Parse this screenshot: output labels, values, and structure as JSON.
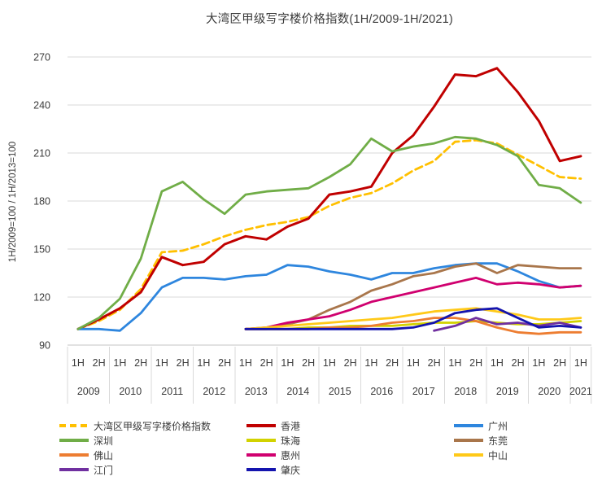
{
  "title": "大湾区甲级写字楼价格指数(1H/2009-1H/2021)",
  "chart_data": {
    "type": "line",
    "title": "大湾区甲级写字楼价格指数(1H/2009-1H/2021)",
    "xlabel": "",
    "ylabel": "1H/2009=100 / 1H/2013=100",
    "ylim": [
      90,
      270
    ],
    "y_ticks": [
      90,
      120,
      150,
      180,
      210,
      240,
      270
    ],
    "grid": true,
    "legend_position": "bottom",
    "x_half_labels": [
      "1H",
      "2H",
      "1H",
      "2H",
      "1H",
      "2H",
      "1H",
      "2H",
      "1H",
      "2H",
      "1H",
      "2H",
      "1H",
      "2H",
      "1H",
      "2H",
      "1H",
      "2H",
      "1H",
      "2H",
      "1H",
      "2H",
      "1H",
      "2H",
      "1H"
    ],
    "x_years": [
      "2009",
      "2010",
      "2011",
      "2012",
      "2013",
      "2014",
      "2015",
      "2016",
      "2017",
      "2018",
      "2019",
      "2020",
      "2021"
    ],
    "points_per_year": [
      2,
      2,
      2,
      2,
      2,
      2,
      2,
      2,
      2,
      2,
      2,
      2,
      1
    ],
    "series": [
      {
        "id": "gba-index",
        "name": "大湾区甲级写字楼价格指数",
        "color": "#FFC000",
        "dashed": true,
        "values": [
          100,
          105,
          112,
          125,
          148,
          149,
          153,
          158,
          162,
          165,
          167,
          170,
          177,
          182,
          185,
          191,
          199,
          205,
          217,
          218,
          216,
          209,
          202,
          195,
          194
        ]
      },
      {
        "id": "hongkong",
        "name": "香港",
        "color": "#C00000",
        "dashed": false,
        "values": [
          100,
          106,
          113,
          123,
          145,
          140,
          142,
          153,
          158,
          156,
          164,
          169,
          184,
          186,
          189,
          210,
          221,
          239,
          259,
          258,
          263,
          248,
          230,
          205,
          208
        ]
      },
      {
        "id": "guangzhou",
        "name": "广州",
        "color": "#2E86DE",
        "dashed": false,
        "values": [
          100,
          100,
          99,
          110,
          126,
          132,
          132,
          131,
          133,
          134,
          140,
          139,
          136,
          134,
          131,
          135,
          135,
          138,
          140,
          141,
          141,
          136,
          130,
          126,
          127
        ]
      },
      {
        "id": "shenzhen",
        "name": "深圳",
        "color": "#70AD47",
        "dashed": false,
        "values": [
          100,
          107,
          119,
          144,
          186,
          192,
          181,
          172,
          184,
          186,
          187,
          188,
          195,
          203,
          219,
          211,
          214,
          216,
          220,
          219,
          215,
          208,
          190,
          188,
          179
        ]
      },
      {
        "id": "zhuhai",
        "name": "珠海",
        "color": "#D2D200",
        "dashed": false,
        "values": [
          null,
          null,
          null,
          null,
          null,
          null,
          null,
          null,
          100,
          100,
          100,
          101,
          101,
          102,
          102,
          102,
          103,
          104,
          104,
          105,
          104,
          103,
          103,
          104,
          105
        ]
      },
      {
        "id": "dongguan",
        "name": "东莞",
        "color": "#A9764B",
        "dashed": false,
        "values": [
          null,
          null,
          null,
          null,
          null,
          null,
          null,
          null,
          100,
          100,
          103,
          106,
          112,
          117,
          124,
          128,
          133,
          135,
          139,
          141,
          135,
          140,
          139,
          138,
          138
        ]
      },
      {
        "id": "foshan",
        "name": "佛山",
        "color": "#ED7D31",
        "dashed": false,
        "values": [
          null,
          null,
          null,
          null,
          null,
          null,
          null,
          null,
          100,
          100,
          100,
          100,
          101,
          101,
          102,
          104,
          105,
          107,
          107,
          105,
          101,
          98,
          97,
          98,
          98
        ]
      },
      {
        "id": "huizhou",
        "name": "惠州",
        "color": "#D0006F",
        "dashed": false,
        "values": [
          null,
          null,
          null,
          null,
          null,
          null,
          null,
          null,
          100,
          101,
          104,
          106,
          108,
          112,
          117,
          120,
          123,
          126,
          129,
          132,
          128,
          129,
          128,
          126,
          127
        ]
      },
      {
        "id": "zhongshan",
        "name": "中山",
        "color": "#FFC919",
        "dashed": false,
        "values": [
          null,
          null,
          null,
          null,
          null,
          null,
          null,
          null,
          100,
          101,
          102,
          103,
          104,
          105,
          106,
          107,
          109,
          111,
          112,
          113,
          111,
          109,
          106,
          106,
          107
        ]
      },
      {
        "id": "jiangmen",
        "name": "江门",
        "color": "#7030A0",
        "dashed": false,
        "values": [
          null,
          null,
          null,
          null,
          null,
          null,
          null,
          null,
          null,
          null,
          null,
          null,
          null,
          null,
          null,
          null,
          null,
          99,
          102,
          107,
          103,
          104,
          102,
          104,
          101
        ]
      },
      {
        "id": "zhaoqing",
        "name": "肇庆",
        "color": "#1414AE",
        "dashed": false,
        "values": [
          null,
          null,
          null,
          null,
          null,
          null,
          null,
          null,
          100,
          100,
          100,
          100,
          100,
          100,
          100,
          100,
          101,
          104,
          110,
          112,
          113,
          107,
          101,
          102,
          101
        ]
      }
    ]
  }
}
